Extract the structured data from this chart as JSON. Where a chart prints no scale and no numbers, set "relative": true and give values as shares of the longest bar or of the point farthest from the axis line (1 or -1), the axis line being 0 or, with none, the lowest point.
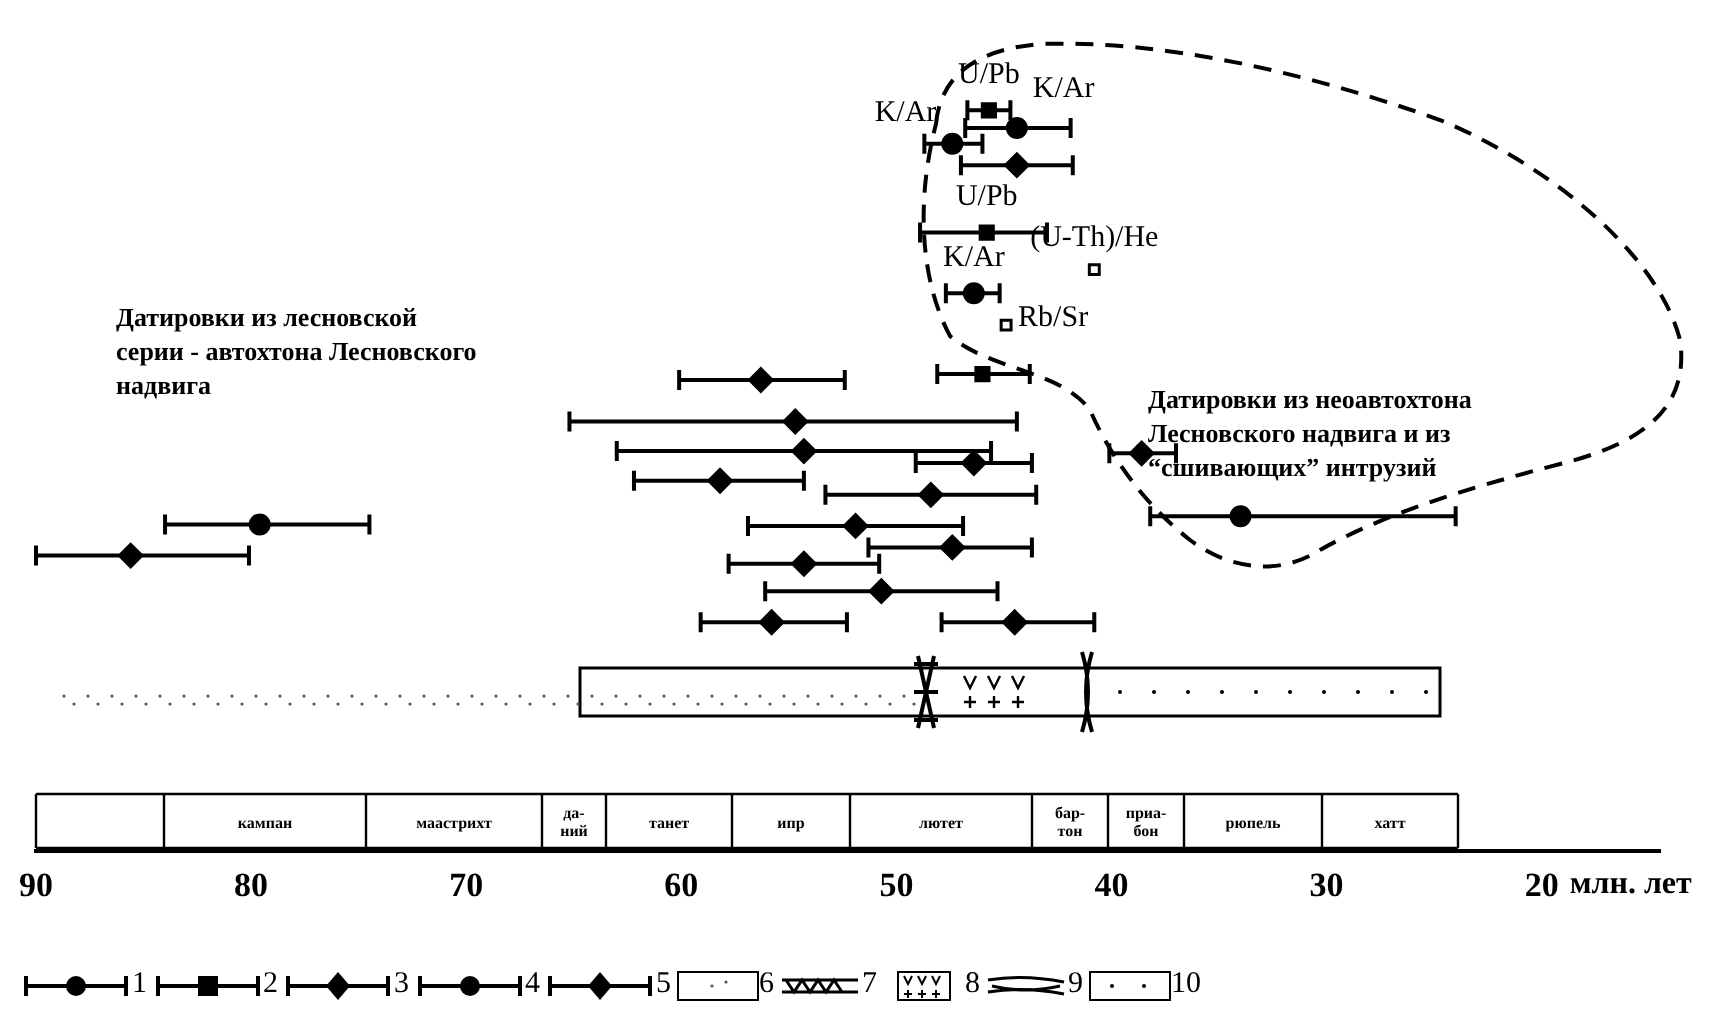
{
  "chart_data": {
    "type": "scatter",
    "xlabel": "млн. лет",
    "xlim": [
      90,
      14.5
    ],
    "xticks": [
      90,
      80,
      70,
      60,
      50,
      40,
      30,
      20
    ],
    "relative": true,
    "grid": false,
    "legend": "bottom",
    "series": [
      {
        "name": "1",
        "color": "#000000",
        "marker": "circle",
        "x": [
          44.4,
          47.4,
          46.4,
          79.6
        ],
        "values": [
          0.976,
          0.955,
          0.753,
          0.441
        ],
        "xerrors": [
          [
            41.9,
            46.8
          ],
          [
            46.0,
            48.7
          ],
          [
            45.2,
            47.7
          ],
          [
            74.5,
            84.0
          ]
        ]
      },
      {
        "name": "2",
        "color": "#000000",
        "marker": "square",
        "x": [
          45.7,
          45.8,
          46.0
        ],
        "values": [
          1.0,
          0.835,
          0.644
        ],
        "xerrors": [
          [
            44.7,
            46.7
          ],
          [
            43.0,
            48.9
          ],
          [
            43.8,
            48.1
          ]
        ]
      },
      {
        "name": "3",
        "color": "#000000",
        "marker": "diamond",
        "x": [
          44.4,
          38.6,
          85.6
        ],
        "values": [
          0.926,
          0.537,
          0.399
        ],
        "xerrors": [
          [
            41.8,
            47.0
          ],
          [
            37.0,
            40.1
          ],
          [
            80.1,
            90
          ]
        ]
      },
      {
        "name": "4",
        "color": "#000000",
        "marker": "circle",
        "x": [
          34.0
        ],
        "values": [
          0.452
        ],
        "xerrors": [
          [
            24.0,
            38.2
          ]
        ]
      },
      {
        "name": "5",
        "color": "#000000",
        "marker": "diamond",
        "x": [
          56.3,
          54.7,
          54.3,
          46.4,
          58.2,
          48.4,
          51.9,
          47.4,
          54.3,
          50.7,
          55.8,
          44.5
        ],
        "values": [
          0.636,
          0.58,
          0.54,
          0.524,
          0.5,
          0.481,
          0.439,
          0.41,
          0.388,
          0.351,
          0.309,
          0.309
        ],
        "xerrors": [
          [
            52.4,
            60.1
          ],
          [
            44.4,
            65.2
          ],
          [
            45.6,
            63.0
          ],
          [
            43.7,
            49.1
          ],
          [
            54.3,
            62.2
          ],
          [
            43.5,
            53.3
          ],
          [
            46.9,
            56.9
          ],
          [
            43.7,
            51.3
          ],
          [
            50.8,
            57.8
          ],
          [
            45.3,
            56.1
          ],
          [
            52.3,
            59.1
          ],
          [
            40.8,
            47.9
          ]
        ]
      },
      {
        "color": "#000000",
        "marker": "square",
        "x": [
          40.8,
          44.9
        ],
        "values": [
          0.785,
          0.71
        ]
      }
    ],
    "annotations": [
      {
        "text": "U/Pb",
        "x": 45.7,
        "y": 1.0
      },
      {
        "text": "K/Ar",
        "x": 47.4,
        "y": 0.955
      },
      {
        "text": "K/Ar",
        "x": 44.4,
        "y": 0.976
      },
      {
        "text": "U/Pb",
        "x": 45.8,
        "y": 0.835
      },
      {
        "text": "(U-Th)/He",
        "x": 40.8,
        "y": 0.785
      },
      {
        "text": "K/Ar",
        "x": 46.4,
        "y": 0.753
      },
      {
        "text": "Rb/Sr",
        "x": 44.9,
        "y": 0.71
      },
      "Датировки из лесновской\nсерии - автохтона Лесновского\nнадвига",
      "Датировки из неоавтохтона\nЛесновского надвига и из\n“сшивающих” интрузий",
      "кампан",
      "маастрихт",
      "да-\nний",
      "танет",
      "ипр",
      "лютет",
      "бар-\nтон",
      "приа-\nбон",
      "рюпель",
      "хатт",
      "6",
      "7",
      "8",
      "9",
      "10"
    ]
  }
}
